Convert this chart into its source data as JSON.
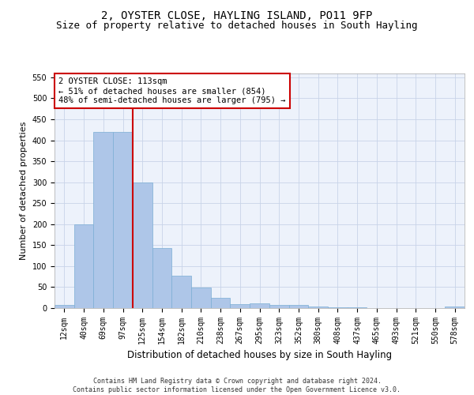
{
  "title": "2, OYSTER CLOSE, HAYLING ISLAND, PO11 9FP",
  "subtitle": "Size of property relative to detached houses in South Hayling",
  "xlabel": "Distribution of detached houses by size in South Hayling",
  "ylabel": "Number of detached properties",
  "categories": [
    "12sqm",
    "40sqm",
    "69sqm",
    "97sqm",
    "125sqm",
    "154sqm",
    "182sqm",
    "210sqm",
    "238sqm",
    "267sqm",
    "295sqm",
    "323sqm",
    "352sqm",
    "380sqm",
    "408sqm",
    "437sqm",
    "465sqm",
    "493sqm",
    "521sqm",
    "550sqm",
    "578sqm"
  ],
  "values": [
    8,
    200,
    420,
    420,
    300,
    143,
    77,
    49,
    24,
    10,
    12,
    8,
    7,
    3,
    2,
    1,
    0,
    0,
    0,
    0,
    3
  ],
  "bar_color": "#aec6e8",
  "bar_edge_color": "#7baed4",
  "grid_color": "#c8d4e8",
  "background_color": "#edf2fb",
  "vline_pos": 3.5,
  "vline_color": "#cc0000",
  "annotation_text": "2 OYSTER CLOSE: 113sqm\n← 51% of detached houses are smaller (854)\n48% of semi-detached houses are larger (795) →",
  "annotation_box_color": "#ffffff",
  "annotation_box_edge": "#cc0000",
  "ylim": [
    0,
    560
  ],
  "yticks": [
    0,
    50,
    100,
    150,
    200,
    250,
    300,
    350,
    400,
    450,
    500,
    550
  ],
  "footer": "Contains HM Land Registry data © Crown copyright and database right 2024.\nContains public sector information licensed under the Open Government Licence v3.0.",
  "title_fontsize": 10,
  "subtitle_fontsize": 9,
  "xlabel_fontsize": 8.5,
  "ylabel_fontsize": 8,
  "tick_fontsize": 7,
  "annotation_fontsize": 7.5,
  "footer_fontsize": 6
}
